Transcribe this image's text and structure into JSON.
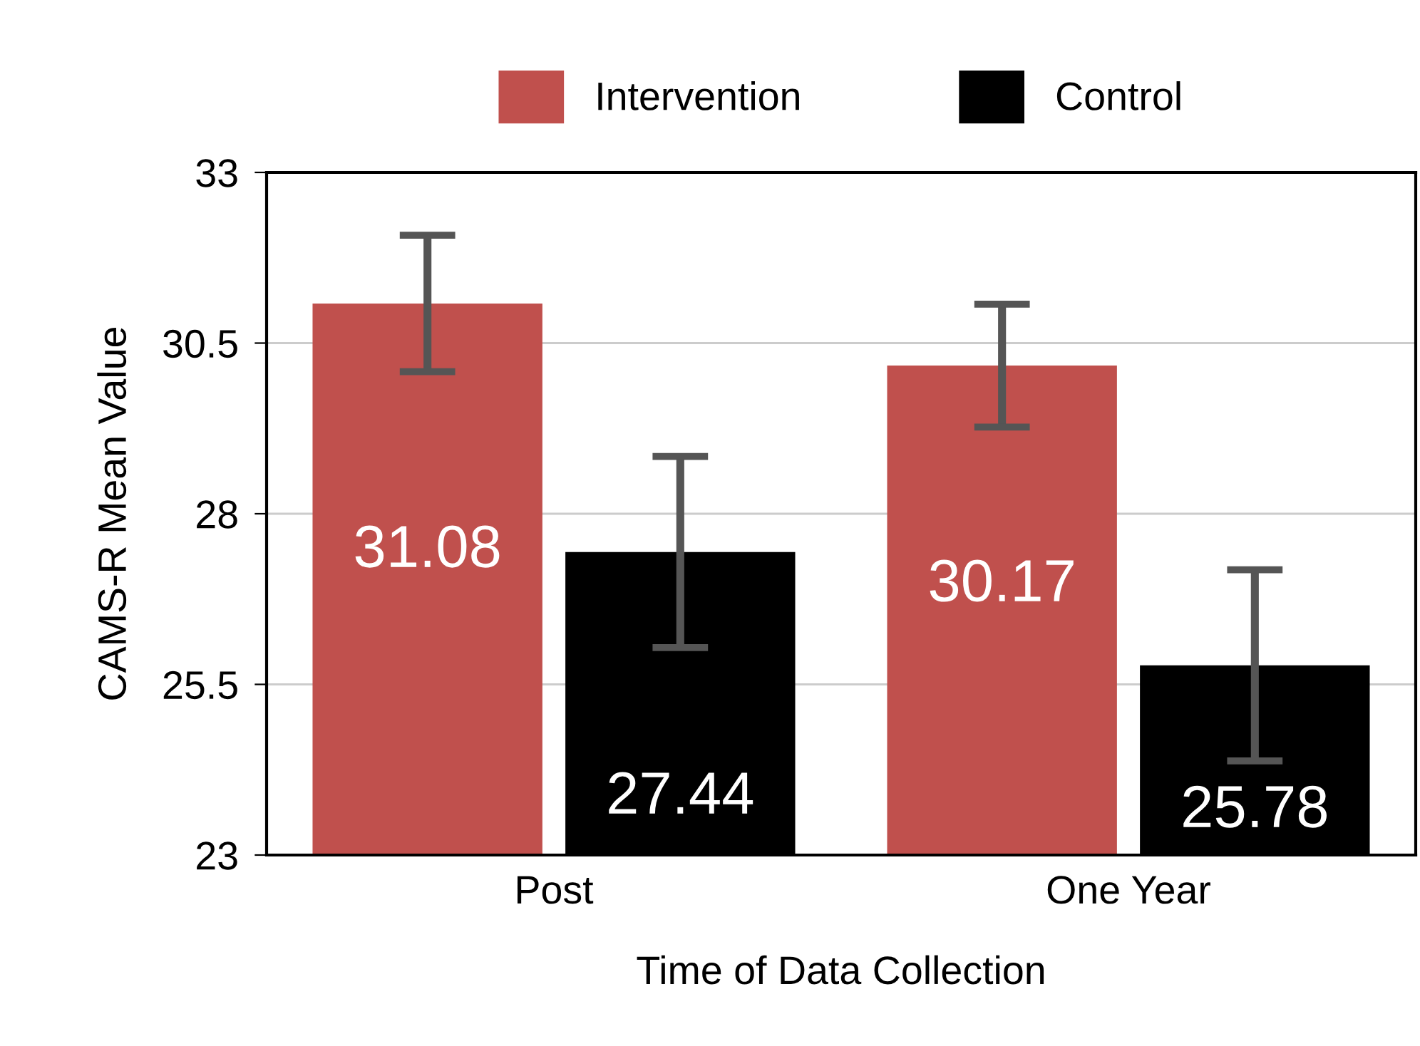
{
  "chart_data": {
    "type": "bar",
    "categories": [
      "Post",
      "One Year"
    ],
    "series": [
      {
        "name": "Intervention",
        "color": "#c0504d",
        "values": [
          31.08,
          30.17
        ],
        "errors": [
          1.0,
          0.9
        ]
      },
      {
        "name": "Control",
        "color": "#000000",
        "values": [
          27.44,
          25.78
        ],
        "errors": [
          1.4,
          1.4
        ]
      }
    ],
    "xlabel": "Time of Data Collection",
    "ylabel": "CAMS-R Mean Value",
    "ylim": [
      23,
      33
    ],
    "yticks": [
      23,
      25.5,
      28,
      30.5,
      33
    ],
    "grid": "y",
    "legend": "top",
    "data_labels": true
  }
}
